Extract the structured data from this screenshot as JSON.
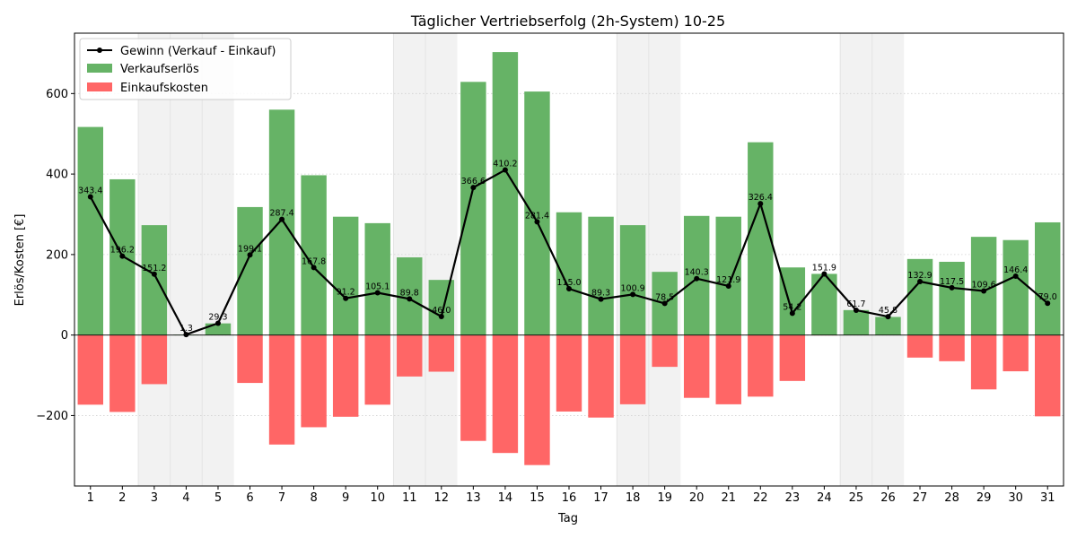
{
  "chart_data": {
    "type": "bar",
    "title": "Täglicher Vertriebserfolg (2h-System) 10-25",
    "xlabel": "Tag",
    "ylabel": "Erlös/Kosten [€]",
    "ylim": [
      -375,
      750
    ],
    "yticks": [
      -200,
      0,
      200,
      400,
      600
    ],
    "grid": "horizontal-dotted",
    "legend_position": "top-left",
    "weekend_shading_days": [
      3,
      4,
      5,
      11,
      12,
      18,
      19,
      25,
      26
    ],
    "categories": [
      "1",
      "2",
      "3",
      "4",
      "5",
      "6",
      "7",
      "8",
      "9",
      "10",
      "11",
      "12",
      "13",
      "14",
      "15",
      "16",
      "17",
      "18",
      "19",
      "20",
      "21",
      "22",
      "23",
      "24",
      "25",
      "26",
      "27",
      "28",
      "29",
      "30",
      "31"
    ],
    "series": [
      {
        "name": "Verkaufserlös",
        "kind": "bar",
        "color": "#66b366",
        "values": [
          517,
          387,
          273,
          1,
          29,
          318,
          560,
          397,
          294,
          278,
          193,
          137,
          629,
          703,
          605,
          305,
          294,
          273,
          157,
          296,
          294,
          479,
          168,
          152,
          62,
          45,
          189,
          182,
          244,
          236,
          280
        ]
      },
      {
        "name": "Einkaufskosten",
        "kind": "bar",
        "color": "#ff6666",
        "values": [
          -173,
          -191,
          -122,
          0,
          0,
          -119,
          -272,
          -229,
          -203,
          -173,
          -103,
          -91,
          -263,
          -293,
          -323,
          -190,
          -205,
          -172,
          -79,
          -156,
          -172,
          -153,
          -114,
          -1,
          0,
          0,
          -56,
          -65,
          -135,
          -90,
          -202
        ]
      },
      {
        "name": "Gewinn (Verkauf - Einkauf)",
        "kind": "line",
        "color": "#000000",
        "values": [
          343.4,
          196.2,
          151.2,
          1.3,
          29.3,
          199.1,
          287.4,
          167.8,
          91.2,
          105.1,
          89.8,
          46.0,
          366.6,
          410.2,
          281.4,
          115.0,
          89.3,
          100.9,
          78.5,
          140.3,
          121.9,
          326.4,
          54.2,
          151.9,
          61.7,
          45.8,
          132.9,
          117.5,
          109.6,
          146.4,
          79.0
        ],
        "labels": [
          "343.4",
          "196.2",
          "151.2",
          "1.3",
          "29.3",
          "199.1",
          "287.4",
          "167.8",
          "91.2",
          "105.1",
          "89.8",
          "46.0",
          "366.6",
          "410.2",
          "281.4",
          "115.0",
          "89.3",
          "100.9",
          "78.5",
          "140.3",
          "121.9",
          "326.4",
          "54.2",
          "151.9",
          "61.7",
          "45.8",
          "132.9",
          "117.5",
          "109.6",
          "146.4",
          "79.0"
        ]
      }
    ]
  }
}
